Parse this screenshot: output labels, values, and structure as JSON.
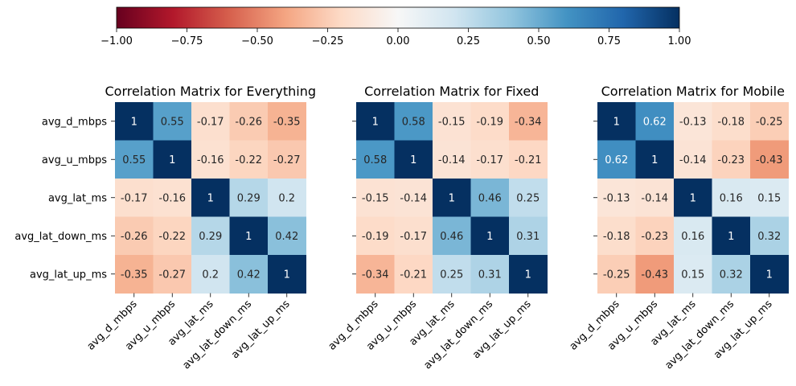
{
  "chart_data": [
    {
      "type": "heatmap",
      "title": "Correlation Matrix for Everything",
      "categories": [
        "avg_d_mbps",
        "avg_u_mbps",
        "avg_lat_ms",
        "avg_lat_down_ms",
        "avg_lat_up_ms"
      ],
      "values": [
        [
          1,
          0.55,
          -0.17,
          -0.26,
          -0.35
        ],
        [
          0.55,
          1,
          -0.16,
          -0.22,
          -0.27
        ],
        [
          -0.17,
          -0.16,
          1,
          0.29,
          0.2
        ],
        [
          -0.26,
          -0.22,
          0.29,
          1,
          0.42
        ],
        [
          -0.35,
          -0.27,
          0.2,
          0.42,
          1
        ]
      ],
      "vmin": -1,
      "vmax": 1,
      "colormap": "RdBu"
    },
    {
      "type": "heatmap",
      "title": "Correlation Matrix for Fixed",
      "categories": [
        "avg_d_mbps",
        "avg_u_mbps",
        "avg_lat_ms",
        "avg_lat_down_ms",
        "avg_lat_up_ms"
      ],
      "values": [
        [
          1,
          0.58,
          -0.15,
          -0.19,
          -0.34
        ],
        [
          0.58,
          1,
          -0.14,
          -0.17,
          -0.21
        ],
        [
          -0.15,
          -0.14,
          1,
          0.46,
          0.25
        ],
        [
          -0.19,
          -0.17,
          0.46,
          1,
          0.31
        ],
        [
          -0.34,
          -0.21,
          0.25,
          0.31,
          1
        ]
      ],
      "vmin": -1,
      "vmax": 1,
      "colormap": "RdBu"
    },
    {
      "type": "heatmap",
      "title": "Correlation Matrix for Mobile",
      "categories": [
        "avg_d_mbps",
        "avg_u_mbps",
        "avg_lat_ms",
        "avg_lat_down_ms",
        "avg_lat_up_ms"
      ],
      "values": [
        [
          1,
          0.62,
          -0.13,
          -0.18,
          -0.25
        ],
        [
          0.62,
          1,
          -0.14,
          -0.23,
          -0.43
        ],
        [
          -0.13,
          -0.14,
          1,
          0.16,
          0.15
        ],
        [
          -0.18,
          -0.23,
          0.16,
          1,
          0.32
        ],
        [
          -0.25,
          -0.43,
          0.15,
          0.32,
          1
        ]
      ],
      "vmin": -1,
      "vmax": 1,
      "colormap": "RdBu"
    }
  ],
  "colorbar": {
    "orientation": "horizontal",
    "location": "top",
    "ticks": [
      "−1.00",
      "−0.75",
      "−0.50",
      "−0.25",
      "0.00",
      "0.25",
      "0.50",
      "0.75",
      "1.00"
    ]
  },
  "colors": {
    "scale": [
      "#67001f",
      "#b2182b",
      "#d6604d",
      "#f4a582",
      "#fddbc7",
      "#f7f7f7",
      "#d1e5f0",
      "#92c5de",
      "#4393c3",
      "#2166ac",
      "#053061"
    ]
  }
}
